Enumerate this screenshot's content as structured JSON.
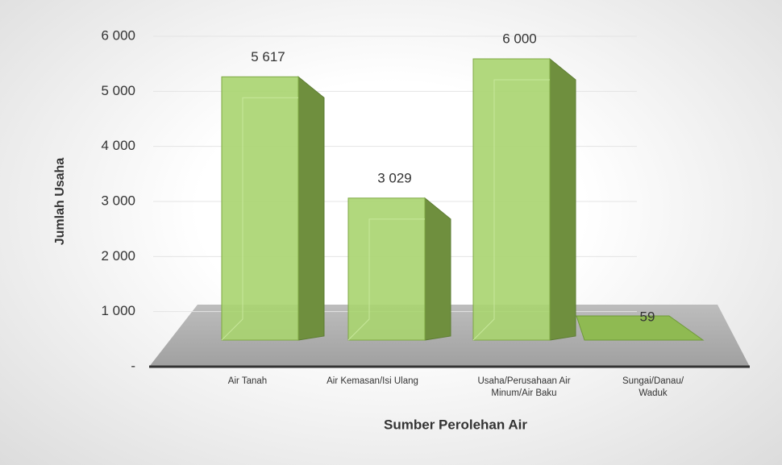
{
  "chart_data": {
    "type": "bar3d",
    "categories": [
      "Air Tanah",
      "Air Kemasan/Isi Ulang",
      "Usaha/Perusahaan Air\nMinum/Air Baku",
      "Sungai/Danau/\nWaduk"
    ],
    "values": [
      5617,
      3029,
      6000,
      59
    ],
    "value_labels": [
      "5 617",
      "3 029",
      "6 000",
      "59"
    ],
    "color": "#a9d46f",
    "ylim": [
      0,
      6000
    ],
    "yticks": [
      {
        "value": 0,
        "label": "-"
      },
      {
        "value": 1000,
        "label": "1 000"
      },
      {
        "value": 2000,
        "label": "2 000"
      },
      {
        "value": 3000,
        "label": "3 000"
      },
      {
        "value": 4000,
        "label": "4 000"
      },
      {
        "value": 5000,
        "label": "5 000"
      },
      {
        "value": 6000,
        "label": "6 000"
      }
    ],
    "grid": true,
    "ylabel": "Jumlah Usaha",
    "xlabel": "Sumber Perolehan Air"
  }
}
